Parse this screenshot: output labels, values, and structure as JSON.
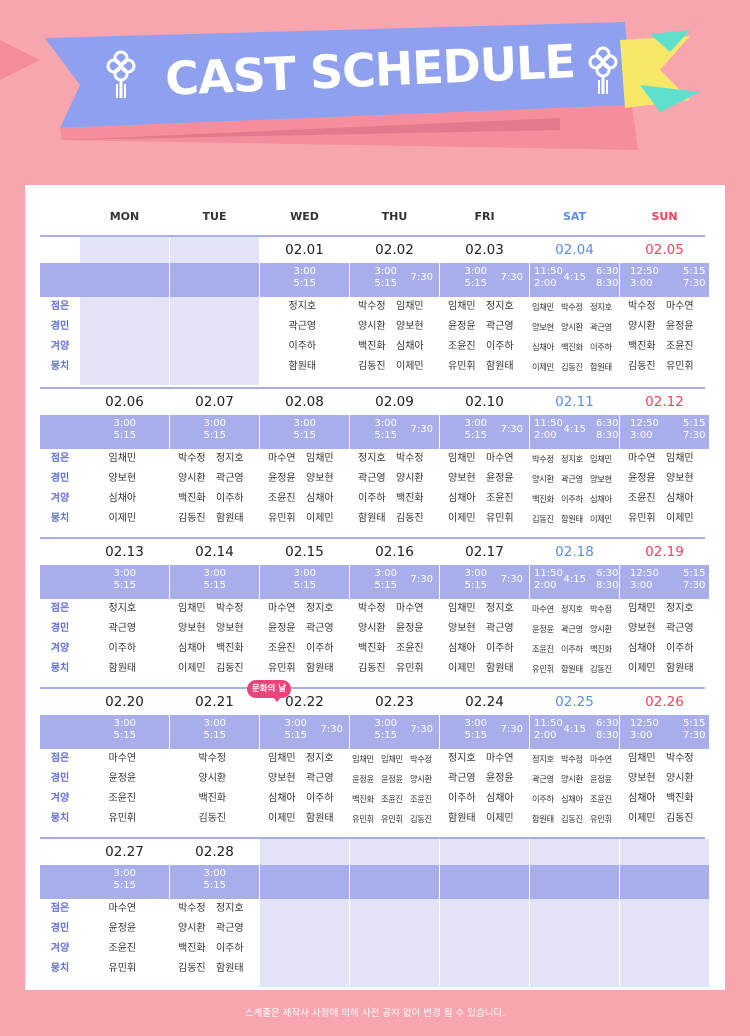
{
  "title": "CAST SCHEDULE",
  "days": [
    "MON",
    "TUE",
    "WED",
    "THU",
    "FRI",
    "SAT",
    "SUN"
  ],
  "roles": [
    "점은",
    "경민",
    "겨양",
    "뭉치"
  ],
  "badge": "문화의 날",
  "footnote": "스케줄은 제작사 사정에 의해 사전 공지 없이 변경 될 수 있습니다.",
  "colors": {
    "background": "#f7a6b0",
    "time_band": "#a7aeea",
    "sat": "#5a8ee8",
    "sun": "#f0435a",
    "role": "#6470d8"
  },
  "weeks": [
    [
      null,
      null,
      {
        "date": "02.01",
        "times": [
          "3:00",
          "5:15"
        ],
        "cast": [
          [
            "정지호"
          ],
          [
            "곽근영"
          ],
          [
            "이주하"
          ],
          [
            "함원태"
          ]
        ]
      },
      {
        "date": "02.02",
        "times": [
          "3:00",
          "5:15",
          "7:30"
        ],
        "cast": [
          [
            "박수정",
            "임채민"
          ],
          [
            "양시환",
            "양보현"
          ],
          [
            "백진화",
            "심채아"
          ],
          [
            "김동진",
            "이제민"
          ]
        ]
      },
      {
        "date": "02.03",
        "times": [
          "3:00",
          "5:15",
          "7:30"
        ],
        "cast": [
          [
            "임채민",
            "정지호"
          ],
          [
            "윤정윤",
            "곽근영"
          ],
          [
            "조윤진",
            "이주하"
          ],
          [
            "유민휘",
            "함원태"
          ]
        ]
      },
      {
        "date": "02.04",
        "times": [
          "11:50",
          "2:00",
          "4:15",
          "6:30",
          "8:30"
        ],
        "cast": [
          [
            "임채민",
            "박수정",
            "정지호"
          ],
          [
            "양보현",
            "양시환",
            "곽근영"
          ],
          [
            "심채아",
            "백진화",
            "이주하"
          ],
          [
            "이제민",
            "김동진",
            "함원태"
          ]
        ]
      },
      {
        "date": "02.05",
        "times": [
          "12:50",
          "3:00",
          "5:15",
          "7:30"
        ],
        "cast": [
          [
            "박수정",
            "마수연"
          ],
          [
            "양시환",
            "윤정윤"
          ],
          [
            "백진화",
            "조윤진"
          ],
          [
            "김동진",
            "유민휘"
          ]
        ]
      }
    ],
    [
      {
        "date": "02.06",
        "times": [
          "3:00",
          "5:15"
        ],
        "cast": [
          [
            "임채민"
          ],
          [
            "양보현"
          ],
          [
            "심채아"
          ],
          [
            "이제민"
          ]
        ]
      },
      {
        "date": "02.07",
        "times": [
          "3:00",
          "5:15"
        ],
        "cast": [
          [
            "박수정",
            "정지호"
          ],
          [
            "양시환",
            "곽근영"
          ],
          [
            "백진화",
            "이주하"
          ],
          [
            "김동진",
            "함원태"
          ]
        ]
      },
      {
        "date": "02.08",
        "times": [
          "3:00",
          "5:15"
        ],
        "cast": [
          [
            "마수연",
            "임채민"
          ],
          [
            "윤정윤",
            "양보현"
          ],
          [
            "조윤진",
            "심채아"
          ],
          [
            "유민휘",
            "이제민"
          ]
        ]
      },
      {
        "date": "02.09",
        "times": [
          "3:00",
          "5:15",
          "7:30"
        ],
        "cast": [
          [
            "정지호",
            "박수정"
          ],
          [
            "곽근영",
            "양시환"
          ],
          [
            "이주하",
            "백진화"
          ],
          [
            "함원태",
            "김동진"
          ]
        ]
      },
      {
        "date": "02.10",
        "times": [
          "3:00",
          "5:15",
          "7:30"
        ],
        "cast": [
          [
            "임채민",
            "마수연"
          ],
          [
            "양보현",
            "윤정윤"
          ],
          [
            "심채아",
            "조윤진"
          ],
          [
            "이제민",
            "유민휘"
          ]
        ]
      },
      {
        "date": "02.11",
        "times": [
          "11:50",
          "2:00",
          "4:15",
          "6:30",
          "8:30"
        ],
        "cast": [
          [
            "박수정",
            "정지호",
            "임채민"
          ],
          [
            "양시환",
            "곽근영",
            "양보현"
          ],
          [
            "백진화",
            "이주하",
            "심채아"
          ],
          [
            "김동진",
            "함원태",
            "이제민"
          ]
        ]
      },
      {
        "date": "02.12",
        "times": [
          "12:50",
          "3:00",
          "5:15",
          "7:30"
        ],
        "cast": [
          [
            "마수연",
            "임채민"
          ],
          [
            "윤정윤",
            "양보현"
          ],
          [
            "조윤진",
            "심채아"
          ],
          [
            "유민휘",
            "이제민"
          ]
        ]
      }
    ],
    [
      {
        "date": "02.13",
        "times": [
          "3:00",
          "5:15"
        ],
        "cast": [
          [
            "정지호"
          ],
          [
            "곽근영"
          ],
          [
            "이주하"
          ],
          [
            "함원태"
          ]
        ]
      },
      {
        "date": "02.14",
        "times": [
          "3:00",
          "5:15"
        ],
        "cast": [
          [
            "임채민",
            "박수정"
          ],
          [
            "양보현",
            "양보현"
          ],
          [
            "심채아",
            "백진화"
          ],
          [
            "이제민",
            "김동진"
          ]
        ]
      },
      {
        "date": "02.15",
        "times": [
          "3:00",
          "5:15"
        ],
        "cast": [
          [
            "마수연",
            "정지호"
          ],
          [
            "윤정윤",
            "곽근영"
          ],
          [
            "조윤진",
            "이주하"
          ],
          [
            "유민휘",
            "함원태"
          ]
        ]
      },
      {
        "date": "02.16",
        "times": [
          "3:00",
          "5:15",
          "7:30"
        ],
        "cast": [
          [
            "박수정",
            "마수연"
          ],
          [
            "양시환",
            "윤정윤"
          ],
          [
            "백진화",
            "조윤진"
          ],
          [
            "김동진",
            "유민휘"
          ]
        ]
      },
      {
        "date": "02.17",
        "times": [
          "3:00",
          "5:15",
          "7:30"
        ],
        "cast": [
          [
            "임채민",
            "정지호"
          ],
          [
            "양보현",
            "곽근영"
          ],
          [
            "심채아",
            "이주하"
          ],
          [
            "이제민",
            "함원태"
          ]
        ]
      },
      {
        "date": "02.18",
        "times": [
          "11:50",
          "2:00",
          "4:15",
          "6:30",
          "8:30"
        ],
        "cast": [
          [
            "마수연",
            "정지호",
            "박수정"
          ],
          [
            "윤정윤",
            "곽근영",
            "양시환"
          ],
          [
            "조윤진",
            "이주하",
            "백진화"
          ],
          [
            "유민휘",
            "함원태",
            "김동진"
          ]
        ]
      },
      {
        "date": "02.19",
        "times": [
          "12:50",
          "3:00",
          "5:15",
          "7:30"
        ],
        "cast": [
          [
            "임채민",
            "정지호"
          ],
          [
            "양보현",
            "곽근영"
          ],
          [
            "심채아",
            "이주하"
          ],
          [
            "이제민",
            "함원태"
          ]
        ]
      }
    ],
    [
      {
        "date": "02.20",
        "times": [
          "3:00",
          "5:15"
        ],
        "cast": [
          [
            "마수연"
          ],
          [
            "윤정윤"
          ],
          [
            "조윤진"
          ],
          [
            "유민휘"
          ]
        ]
      },
      {
        "date": "02.21",
        "times": [
          "3:00",
          "5:15"
        ],
        "cast": [
          [
            "박수정"
          ],
          [
            "양시환"
          ],
          [
            "백진화"
          ],
          [
            "김동진"
          ]
        ]
      },
      {
        "date": "02.22",
        "times": [
          "3:00",
          "5:15",
          "7:30"
        ],
        "cast": [
          [
            "임채민",
            "정지호"
          ],
          [
            "양보현",
            "곽근영"
          ],
          [
            "심채아",
            "이주하"
          ],
          [
            "이제민",
            "함원태"
          ]
        ]
      },
      {
        "date": "02.23",
        "times": [
          "3:00",
          "5:15",
          "7:30"
        ],
        "cast": [
          [
            "임채민",
            "임채민",
            "박수정"
          ],
          [
            "윤정윤",
            "윤정윤",
            "양시환"
          ],
          [
            "백진화",
            "조윤진",
            "조윤진"
          ],
          [
            "유민휘",
            "유민휘",
            "김동진"
          ]
        ]
      },
      {
        "date": "02.24",
        "times": [
          "3:00",
          "5:15",
          "7:30"
        ],
        "cast": [
          [
            "정지호",
            "마수연"
          ],
          [
            "곽근영",
            "윤정윤"
          ],
          [
            "이주하",
            "심채아"
          ],
          [
            "함원태",
            "이제민"
          ]
        ]
      },
      {
        "date": "02.25",
        "times": [
          "11:50",
          "2:00",
          "4:15",
          "6:30",
          "8:30"
        ],
        "cast": [
          [
            "정지호",
            "박수정",
            "마수연"
          ],
          [
            "곽근영",
            "양시환",
            "윤정윤"
          ],
          [
            "이주하",
            "심채아",
            "조윤진"
          ],
          [
            "함원태",
            "김동진",
            "유민휘"
          ]
        ]
      },
      {
        "date": "02.26",
        "times": [
          "12:50",
          "3:00",
          "5:15",
          "7:30"
        ],
        "cast": [
          [
            "임채민",
            "박수정"
          ],
          [
            "양보현",
            "양시환"
          ],
          [
            "심채아",
            "백진화"
          ],
          [
            "이제민",
            "김동진"
          ]
        ]
      }
    ],
    [
      {
        "date": "02.27",
        "times": [
          "3:00",
          "5:15"
        ],
        "cast": [
          [
            "마수연"
          ],
          [
            "윤정윤"
          ],
          [
            "조윤진"
          ],
          [
            "유민휘"
          ]
        ]
      },
      {
        "date": "02.28",
        "times": [
          "3:00",
          "5:15"
        ],
        "cast": [
          [
            "박수정",
            "정지호"
          ],
          [
            "양시환",
            "곽근영"
          ],
          [
            "백진화",
            "이주하"
          ],
          [
            "김동진",
            "함원태"
          ]
        ]
      },
      null,
      null,
      null,
      null,
      null
    ]
  ]
}
